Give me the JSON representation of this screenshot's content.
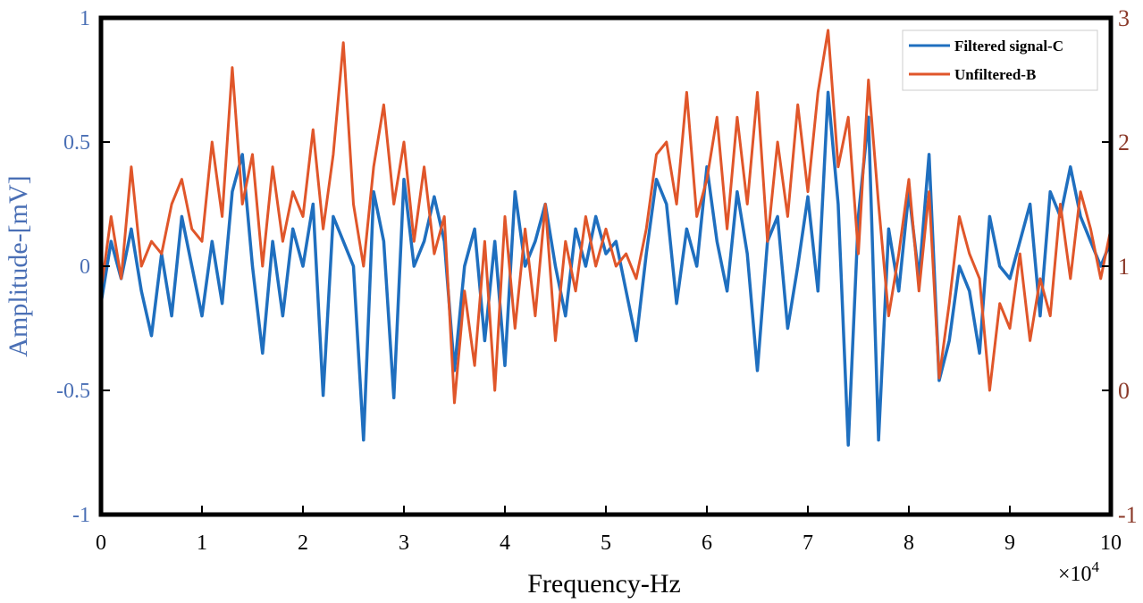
{
  "chart_data": {
    "type": "line",
    "xlabel": "Frequency-Hz",
    "ylabel_left": "Amplitude-[mV]",
    "x_multiplier_label": "×10",
    "x_multiplier_exp": "4",
    "xlim": [
      0,
      10
    ],
    "ylim_left": [
      -1,
      1
    ],
    "ylim_right": [
      -1,
      3
    ],
    "grid": false,
    "legend_position": "top-right",
    "colors": {
      "filtered": "#1f6fbf",
      "unfiltered": "#e0562a",
      "left_axis_text": "#4a6fb5",
      "right_axis_text": "#8b3a2a",
      "frame": "#000000"
    },
    "x_ticks": [
      {
        "value": 0,
        "label": "0"
      },
      {
        "value": 1,
        "label": "1"
      },
      {
        "value": 2,
        "label": "2"
      },
      {
        "value": 3,
        "label": "3"
      },
      {
        "value": 4,
        "label": "4"
      },
      {
        "value": 5,
        "label": "5"
      },
      {
        "value": 6,
        "label": "6"
      },
      {
        "value": 7,
        "label": "7"
      },
      {
        "value": 8,
        "label": "8"
      },
      {
        "value": 9,
        "label": "9"
      },
      {
        "value": 10,
        "label": "10"
      }
    ],
    "y_left_ticks": [
      {
        "value": 1,
        "label": "1"
      },
      {
        "value": 0.5,
        "label": "0.5"
      },
      {
        "value": 0,
        "label": "0"
      },
      {
        "value": -0.5,
        "label": "-0.5"
      },
      {
        "value": -1,
        "label": "-1"
      }
    ],
    "y_right_ticks": [
      {
        "value": 3,
        "label": "3"
      },
      {
        "value": 2,
        "label": "2"
      },
      {
        "value": 1,
        "label": "1"
      },
      {
        "value": 0,
        "label": "0"
      },
      {
        "value": -1,
        "label": "-1"
      }
    ],
    "series": [
      {
        "name": "Filtered signal-C",
        "axis": "left",
        "x": [
          0,
          0.1,
          0.2,
          0.3,
          0.4,
          0.5,
          0.6,
          0.7,
          0.8,
          0.9,
          1,
          1.1,
          1.2,
          1.3,
          1.4,
          1.5,
          1.6,
          1.7,
          1.8,
          1.9,
          2,
          2.1,
          2.2,
          2.3,
          2.4,
          2.5,
          2.6,
          2.7,
          2.8,
          2.9,
          3,
          3.1,
          3.2,
          3.3,
          3.4,
          3.5,
          3.6,
          3.7,
          3.8,
          3.9,
          4,
          4.1,
          4.2,
          4.3,
          4.4,
          4.5,
          4.6,
          4.7,
          4.8,
          4.9,
          5,
          5.1,
          5.2,
          5.3,
          5.4,
          5.5,
          5.6,
          5.7,
          5.8,
          5.9,
          6,
          6.1,
          6.2,
          6.3,
          6.4,
          6.5,
          6.6,
          6.7,
          6.8,
          6.9,
          7,
          7.1,
          7.2,
          7.3,
          7.4,
          7.5,
          7.6,
          7.7,
          7.8,
          7.9,
          8,
          8.1,
          8.2,
          8.3,
          8.4,
          8.5,
          8.6,
          8.7,
          8.8,
          8.9,
          9,
          9.1,
          9.2,
          9.3,
          9.4,
          9.5,
          9.6,
          9.7,
          9.8,
          9.9,
          10
        ],
        "y": [
          -0.15,
          0.1,
          -0.05,
          0.15,
          -0.1,
          -0.28,
          0.05,
          -0.2,
          0.2,
          0.0,
          -0.2,
          0.1,
          -0.15,
          0.3,
          0.45,
          0.0,
          -0.35,
          0.1,
          -0.2,
          0.15,
          0.0,
          0.25,
          -0.52,
          0.2,
          0.1,
          0.0,
          -0.7,
          0.3,
          0.1,
          -0.53,
          0.35,
          0.0,
          0.1,
          0.28,
          0.1,
          -0.42,
          0.0,
          0.15,
          -0.3,
          0.1,
          -0.4,
          0.3,
          0.0,
          0.1,
          0.25,
          0.0,
          -0.2,
          0.15,
          0.0,
          0.2,
          0.05,
          0.1,
          -0.1,
          -0.3,
          0.05,
          0.35,
          0.25,
          -0.15,
          0.15,
          0.0,
          0.4,
          0.1,
          -0.1,
          0.3,
          0.05,
          -0.42,
          0.1,
          0.2,
          -0.25,
          0.0,
          0.28,
          -0.1,
          0.7,
          0.25,
          -0.72,
          0.2,
          0.6,
          -0.7,
          0.15,
          -0.1,
          0.3,
          -0.05,
          0.45,
          -0.46,
          -0.3,
          0.0,
          -0.1,
          -0.35,
          0.2,
          0.0,
          -0.05,
          0.1,
          0.25,
          -0.2,
          0.3,
          0.2,
          0.4,
          0.2,
          0.1,
          0.0,
          0.1
        ]
      },
      {
        "name": "Unfiltered-B",
        "axis": "right",
        "x": [
          0,
          0.1,
          0.2,
          0.3,
          0.4,
          0.5,
          0.6,
          0.7,
          0.8,
          0.9,
          1,
          1.1,
          1.2,
          1.3,
          1.4,
          1.5,
          1.6,
          1.7,
          1.8,
          1.9,
          2,
          2.1,
          2.2,
          2.3,
          2.4,
          2.5,
          2.6,
          2.7,
          2.8,
          2.9,
          3,
          3.1,
          3.2,
          3.3,
          3.4,
          3.5,
          3.6,
          3.7,
          3.8,
          3.9,
          4,
          4.1,
          4.2,
          4.3,
          4.4,
          4.5,
          4.6,
          4.7,
          4.8,
          4.9,
          5,
          5.1,
          5.2,
          5.3,
          5.4,
          5.5,
          5.6,
          5.7,
          5.8,
          5.9,
          6,
          6.1,
          6.2,
          6.3,
          6.4,
          6.5,
          6.6,
          6.7,
          6.8,
          6.9,
          7,
          7.1,
          7.2,
          7.3,
          7.4,
          7.5,
          7.6,
          7.7,
          7.8,
          7.9,
          8,
          8.1,
          8.2,
          8.3,
          8.4,
          8.5,
          8.6,
          8.7,
          8.8,
          8.9,
          9,
          9.1,
          9.2,
          9.3,
          9.4,
          9.5,
          9.6,
          9.7,
          9.8,
          9.9,
          10
        ],
        "y": [
          0.8,
          1.4,
          0.9,
          1.8,
          1.0,
          1.2,
          1.1,
          1.5,
          1.7,
          1.3,
          1.2,
          2.0,
          1.4,
          2.6,
          1.5,
          1.9,
          1.0,
          1.8,
          1.2,
          1.6,
          1.4,
          2.1,
          1.3,
          1.9,
          2.8,
          1.5,
          1.0,
          1.8,
          2.3,
          1.5,
          2.0,
          1.2,
          1.8,
          1.1,
          1.4,
          -0.1,
          0.8,
          0.2,
          1.2,
          0.0,
          1.4,
          0.5,
          1.3,
          0.6,
          1.5,
          0.4,
          1.2,
          0.8,
          1.4,
          1.0,
          1.3,
          1.0,
          1.1,
          0.9,
          1.3,
          1.9,
          2.0,
          1.5,
          2.4,
          1.4,
          1.7,
          2.2,
          1.3,
          2.2,
          1.5,
          2.4,
          1.2,
          2.0,
          1.4,
          2.3,
          1.6,
          2.4,
          2.9,
          1.8,
          2.2,
          1.1,
          2.5,
          1.5,
          0.6,
          1.1,
          1.7,
          0.8,
          1.6,
          0.1,
          0.7,
          1.4,
          1.1,
          0.9,
          0.0,
          0.7,
          0.5,
          1.1,
          0.4,
          0.9,
          0.6,
          1.5,
          0.9,
          1.6,
          1.3,
          0.9,
          1.3
        ]
      }
    ]
  }
}
